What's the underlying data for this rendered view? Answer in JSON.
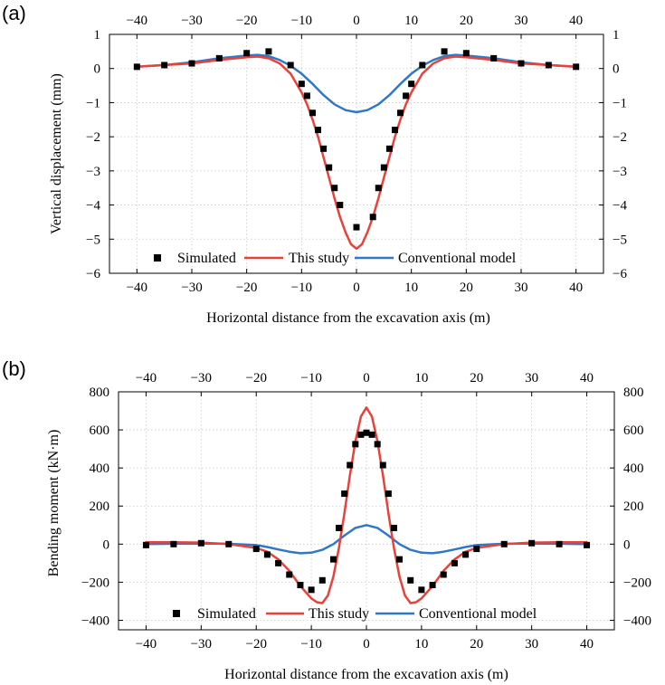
{
  "colors": {
    "this_study": "#e8423a",
    "conventional": "#2f78c8",
    "simulated": "#000000"
  },
  "chart_data": [
    {
      "panel": "(a)",
      "type": "line",
      "xlabel": "Horizontal distance from the excavation axis (m)",
      "ylabel": "Vertical displacement (mm)",
      "xlim": [
        -45,
        45
      ],
      "ylim": [
        -6,
        1
      ],
      "xticks": [
        -40,
        -30,
        -20,
        -10,
        0,
        10,
        20,
        30,
        40
      ],
      "yticks": [
        1,
        0,
        -1,
        -2,
        -3,
        -4,
        -5,
        -6
      ],
      "xtick_labels": [
        "−40",
        "−30",
        "−20",
        "−10",
        "0",
        "10",
        "20",
        "30",
        "40"
      ],
      "ytick_labels": [
        "1",
        "0",
        "−1",
        "−2",
        "−3",
        "−4",
        "−5",
        "−6"
      ],
      "grid": true,
      "legend": {
        "position": "bottom",
        "labels": [
          "Simulated",
          "This study",
          "Conventional model"
        ]
      },
      "series": [
        {
          "name": "Simulated",
          "kind": "scatter",
          "x": [
            -40,
            -35,
            -30,
            -25,
            -20,
            -16,
            -12,
            -10,
            -9,
            -8,
            -7,
            -6,
            -5,
            -4,
            -3,
            0,
            3,
            4,
            5,
            6,
            7,
            8,
            9,
            10,
            12,
            16,
            20,
            25,
            30,
            35,
            40
          ],
          "y": [
            0.05,
            0.1,
            0.15,
            0.3,
            0.45,
            0.5,
            0.1,
            -0.45,
            -0.8,
            -1.3,
            -1.8,
            -2.35,
            -2.9,
            -3.5,
            -4.0,
            -4.65,
            -4.35,
            -3.5,
            -2.9,
            -2.35,
            -1.8,
            -1.3,
            -0.8,
            -0.45,
            0.1,
            0.5,
            0.45,
            0.3,
            0.15,
            0.1,
            0.05
          ]
        },
        {
          "name": "This study",
          "kind": "line",
          "x": [
            -40,
            -35,
            -30,
            -25,
            -20,
            -18,
            -16,
            -14,
            -12,
            -10,
            -9,
            -8,
            -7,
            -6,
            -5,
            -4,
            -3,
            -2,
            -1,
            0,
            1,
            2,
            3,
            4,
            5,
            6,
            7,
            8,
            9,
            10,
            12,
            14,
            16,
            18,
            20,
            25,
            30,
            35,
            40
          ],
          "y": [
            0.05,
            0.1,
            0.15,
            0.25,
            0.33,
            0.35,
            0.3,
            0.15,
            -0.15,
            -0.7,
            -1.05,
            -1.5,
            -2.0,
            -2.6,
            -3.2,
            -3.8,
            -4.35,
            -4.8,
            -5.15,
            -5.28,
            -5.15,
            -4.8,
            -4.35,
            -3.8,
            -3.2,
            -2.6,
            -2.0,
            -1.5,
            -1.05,
            -0.7,
            -0.15,
            0.15,
            0.3,
            0.35,
            0.33,
            0.25,
            0.15,
            0.1,
            0.05
          ]
        },
        {
          "name": "Conventional model",
          "kind": "line",
          "x": [
            -40,
            -35,
            -30,
            -25,
            -20,
            -18,
            -16,
            -14,
            -12,
            -10,
            -8,
            -6,
            -4,
            -2,
            0,
            2,
            4,
            6,
            8,
            10,
            12,
            14,
            16,
            18,
            20,
            25,
            30,
            35,
            40
          ],
          "y": [
            0.05,
            0.1,
            0.18,
            0.3,
            0.38,
            0.4,
            0.36,
            0.25,
            0.08,
            -0.15,
            -0.45,
            -0.78,
            -1.05,
            -1.22,
            -1.28,
            -1.22,
            -1.05,
            -0.78,
            -0.45,
            -0.15,
            0.08,
            0.25,
            0.36,
            0.4,
            0.38,
            0.3,
            0.18,
            0.1,
            0.05
          ]
        }
      ]
    },
    {
      "panel": "(b)",
      "type": "line",
      "xlabel": "Horizontal distance from the excavation axis (m)",
      "ylabel": "Bending moment (kN·m)",
      "xlim": [
        -45,
        45
      ],
      "ylim": [
        -450,
        800
      ],
      "xticks": [
        -40,
        -30,
        -20,
        -10,
        0,
        10,
        20,
        30,
        40
      ],
      "yticks": [
        800,
        600,
        400,
        200,
        0,
        -200,
        -400
      ],
      "xtick_labels": [
        "−40",
        "−30",
        "−20",
        "−10",
        "0",
        "10",
        "20",
        "30",
        "40"
      ],
      "ytick_labels": [
        "800",
        "600",
        "400",
        "200",
        "0",
        "−200",
        "−400"
      ],
      "grid": true,
      "legend": {
        "position": "bottom",
        "labels": [
          "Simulated",
          "This study",
          "Conventional model"
        ]
      },
      "series": [
        {
          "name": "Simulated",
          "kind": "scatter",
          "x": [
            -40,
            -35,
            -30,
            -25,
            -20,
            -18,
            -16,
            -14,
            -12,
            -10,
            -8,
            -6,
            -5,
            -4,
            -3,
            -2,
            -1,
            0,
            1,
            2,
            3,
            4,
            5,
            6,
            8,
            10,
            12,
            14,
            16,
            18,
            20,
            25,
            30,
            35,
            40
          ],
          "y": [
            -5,
            0,
            5,
            0,
            -25,
            -55,
            -100,
            -160,
            -215,
            -240,
            -190,
            -80,
            85,
            265,
            415,
            525,
            575,
            585,
            575,
            525,
            415,
            265,
            85,
            -80,
            -190,
            -240,
            -215,
            -160,
            -100,
            -55,
            -25,
            0,
            5,
            0,
            -5
          ]
        },
        {
          "name": "This study",
          "kind": "line",
          "x": [
            -40,
            -35,
            -30,
            -25,
            -20,
            -18,
            -16,
            -14,
            -12,
            -10,
            -9,
            -8,
            -7,
            -6,
            -5,
            -4,
            -3,
            -2,
            -1,
            0,
            1,
            2,
            3,
            4,
            5,
            6,
            7,
            8,
            9,
            10,
            12,
            14,
            16,
            18,
            20,
            25,
            30,
            35,
            40
          ],
          "y": [
            10,
            10,
            8,
            0,
            -20,
            -40,
            -80,
            -140,
            -220,
            -285,
            -305,
            -310,
            -270,
            -170,
            -20,
            160,
            360,
            540,
            670,
            718,
            670,
            540,
            360,
            160,
            -20,
            -170,
            -270,
            -310,
            -305,
            -285,
            -220,
            -140,
            -80,
            -40,
            -20,
            0,
            8,
            10,
            10
          ]
        },
        {
          "name": "Conventional model",
          "kind": "line",
          "x": [
            -40,
            -35,
            -30,
            -25,
            -20,
            -18,
            -16,
            -14,
            -12,
            -10,
            -8,
            -6,
            -4,
            -2,
            0,
            2,
            4,
            6,
            8,
            10,
            12,
            14,
            16,
            18,
            20,
            25,
            30,
            35,
            40
          ],
          "y": [
            0,
            2,
            3,
            2,
            -5,
            -15,
            -28,
            -40,
            -48,
            -45,
            -30,
            0,
            45,
            85,
            100,
            85,
            45,
            0,
            -30,
            -45,
            -48,
            -40,
            -28,
            -15,
            -5,
            2,
            3,
            2,
            0
          ]
        }
      ]
    }
  ]
}
